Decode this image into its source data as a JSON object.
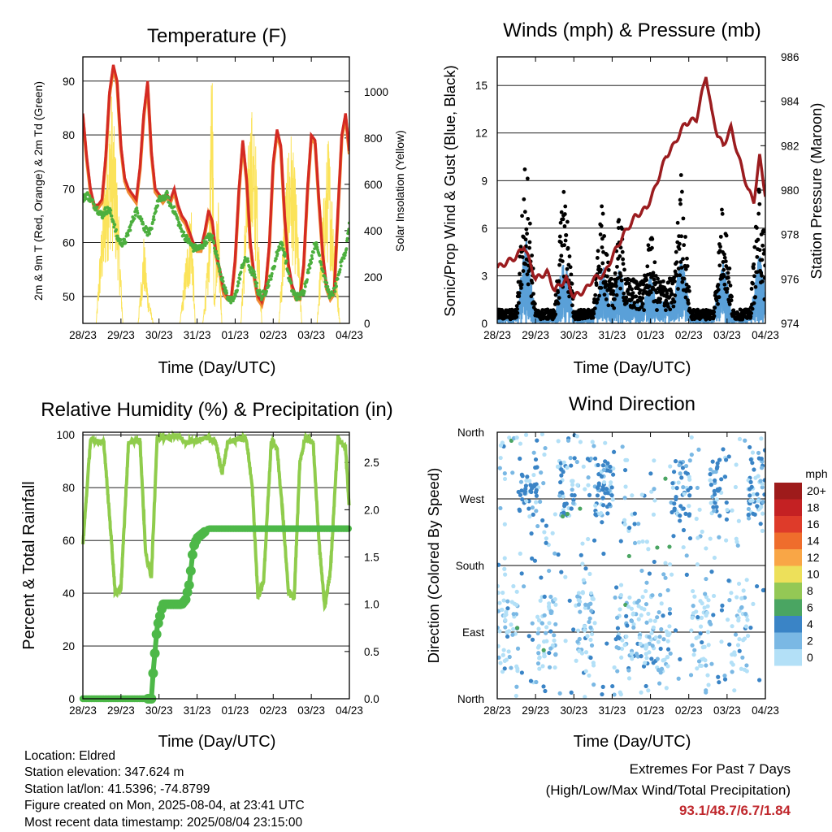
{
  "info": {
    "location": "Location: Eldred",
    "elevation": "Station elevation: 347.624 m",
    "latlon": "Station lat/lon: 41.5396; -74.8799",
    "created": "Figure created on Mon, 2025-08-04, at 23:41 UTC",
    "recent": "Most recent data timestamp: 2025/08/04 23:15:00"
  },
  "extremes": {
    "title": "Extremes For Past 7 Days",
    "subtitle": "(High/Low/Max Wind/Total Precipitation)",
    "values": "93.1/48.7/6.7/1.84"
  },
  "colors": {
    "red": "#d42a23",
    "orange": "#f08a33",
    "green": "#4caf3e",
    "yellow": "#fbe35a",
    "blue": "#5aa0d8",
    "black": "#000000",
    "maroon": "#9b1c1f",
    "rh_green": "#8fcc4c",
    "precip_green": "#4db848"
  },
  "chart_data": [
    {
      "type": "line",
      "title": "Temperature (F)",
      "xlabel": "Time (Day/UTC)",
      "ylabel": "2m & 9m T (Red, Orange) & 2m Td (Green)",
      "ylabel_right": "Solar Insolation (Yellow)",
      "x_ticks": [
        "28/23",
        "29/23",
        "30/23",
        "31/23",
        "01/23",
        "02/23",
        "03/23",
        "04/23"
      ],
      "y_ticks": [
        "50",
        "60",
        "70",
        "80",
        "90"
      ],
      "y_ticks_right": [
        "0",
        "200",
        "400",
        "600",
        "800",
        "1000"
      ],
      "ylim": [
        45,
        94.5
      ],
      "ylim_right": [
        0,
        1150
      ],
      "x": [
        0,
        0.1,
        0.2,
        0.3,
        0.4,
        0.5,
        0.6,
        0.7,
        0.8,
        0.9,
        1.0,
        1.1,
        1.2,
        1.3,
        1.4,
        1.5,
        1.6,
        1.7,
        1.8,
        1.9,
        2.0,
        2.1,
        2.2,
        2.3,
        2.4,
        2.5,
        2.6,
        2.7,
        2.8,
        2.9,
        3.0,
        3.1,
        3.2,
        3.3,
        3.4,
        3.5,
        3.6,
        3.7,
        3.8,
        3.9,
        4.0,
        4.1,
        4.2,
        4.3,
        4.4,
        4.5,
        4.6,
        4.7,
        4.8,
        4.9,
        5.0,
        5.1,
        5.2,
        5.3,
        5.4,
        5.5,
        5.6,
        5.7,
        5.8,
        5.9,
        6.0,
        6.1,
        6.2,
        6.3,
        6.4,
        6.5,
        6.6,
        6.7,
        6.8,
        6.9,
        7.0
      ],
      "series": [
        {
          "name": "2m T",
          "color": "red",
          "values": [
            84,
            76,
            70,
            67,
            67,
            68,
            76,
            88,
            93,
            90,
            78,
            72,
            70,
            69,
            68,
            74,
            84,
            90,
            77,
            70,
            69,
            68,
            69,
            68,
            70,
            67,
            65,
            64,
            62,
            60,
            59,
            59,
            62,
            66,
            64,
            58,
            55,
            51,
            50,
            50,
            57,
            70,
            79,
            72,
            60,
            54,
            50,
            49,
            52,
            60,
            75,
            81,
            78,
            65,
            56,
            52,
            50,
            50,
            56,
            70,
            80,
            79,
            68,
            58,
            52,
            50,
            51,
            66,
            80,
            84,
            77
          ]
        },
        {
          "name": "2m Td",
          "color": "green",
          "values": [
            68,
            69,
            68,
            67,
            66,
            65,
            66,
            66,
            64,
            61,
            60,
            60,
            62,
            64,
            66,
            65,
            63,
            62,
            62,
            66,
            68,
            68,
            69,
            67,
            66,
            64,
            62,
            61,
            60,
            59,
            59,
            59,
            60,
            61,
            61,
            58,
            55,
            52,
            50,
            49,
            50,
            53,
            56,
            57,
            55,
            54,
            51,
            50,
            51,
            53,
            55,
            58,
            60,
            58,
            54,
            51,
            50,
            50,
            51,
            54,
            57,
            60,
            58,
            55,
            52,
            50,
            51,
            53,
            57,
            58,
            64
          ]
        }
      ],
      "solar": [
        [
          0,
          0
        ],
        [
          0.35,
          0
        ],
        [
          0.45,
          300
        ],
        [
          0.6,
          640
        ],
        [
          0.75,
          930
        ],
        [
          0.9,
          600
        ],
        [
          1.05,
          0
        ],
        [
          1.45,
          0
        ],
        [
          1.6,
          350
        ],
        [
          1.72,
          120
        ],
        [
          1.85,
          0
        ],
        [
          2.55,
          0
        ],
        [
          2.7,
          260
        ],
        [
          2.85,
          500
        ],
        [
          2.95,
          0
        ],
        [
          3.15,
          0
        ],
        [
          3.3,
          300
        ],
        [
          3.4,
          1160
        ],
        [
          3.45,
          100
        ],
        [
          3.55,
          600
        ],
        [
          3.65,
          0
        ],
        [
          4.15,
          0
        ],
        [
          4.3,
          600
        ],
        [
          4.42,
          880
        ],
        [
          4.55,
          700
        ],
        [
          4.7,
          0
        ],
        [
          5.15,
          0
        ],
        [
          5.3,
          500
        ],
        [
          5.45,
          800
        ],
        [
          5.6,
          550
        ],
        [
          5.75,
          0
        ],
        [
          6.15,
          0
        ],
        [
          6.3,
          450
        ],
        [
          6.45,
          760
        ],
        [
          6.6,
          400
        ],
        [
          6.75,
          0
        ],
        [
          7.0,
          0
        ]
      ]
    },
    {
      "type": "scatter",
      "title": "Winds (mph) & Pressure (mb)",
      "xlabel": "Time (Day/UTC)",
      "ylabel": "Sonic/Prop Wind & Gust (Blue, Black)",
      "ylabel_right": "Station Pressure (Maroon)",
      "x_ticks": [
        "28/23",
        "29/23",
        "30/23",
        "31/23",
        "01/23",
        "02/23",
        "03/23",
        "04/23"
      ],
      "y_ticks": [
        "0",
        "3",
        "6",
        "9",
        "12",
        "15"
      ],
      "y_ticks_right": [
        "974",
        "976",
        "978",
        "980",
        "982",
        "984",
        "986"
      ],
      "ylim": [
        0,
        16.8
      ],
      "ylim_right": [
        974,
        986
      ],
      "wind_bursts": [
        [
          0.75,
          9.5
        ],
        [
          1.75,
          8
        ],
        [
          2.75,
          6.5
        ],
        [
          3.2,
          6
        ],
        [
          4.0,
          5
        ],
        [
          4.8,
          8
        ],
        [
          5.9,
          7
        ],
        [
          6.85,
          8
        ]
      ],
      "pressure": [
        [
          0,
          976.5
        ],
        [
          0.3,
          976.8
        ],
        [
          0.5,
          977
        ],
        [
          0.7,
          977.5
        ],
        [
          0.9,
          976.5
        ],
        [
          1.0,
          976
        ],
        [
          1.3,
          976.3
        ],
        [
          1.5,
          975.5
        ],
        [
          1.8,
          976
        ],
        [
          2.0,
          975.2
        ],
        [
          2.3,
          975.5
        ],
        [
          2.5,
          976
        ],
        [
          2.8,
          976.2
        ],
        [
          3.0,
          977
        ],
        [
          3.3,
          978
        ],
        [
          3.6,
          978.8
        ],
        [
          3.9,
          979.2
        ],
        [
          4.1,
          980
        ],
        [
          4.4,
          981.5
        ],
        [
          4.6,
          982
        ],
        [
          4.9,
          983
        ],
        [
          5.2,
          983.2
        ],
        [
          5.45,
          985.2
        ],
        [
          5.6,
          983.5
        ],
        [
          5.75,
          982.5
        ],
        [
          5.9,
          982
        ],
        [
          6.1,
          982.8
        ],
        [
          6.3,
          981.5
        ],
        [
          6.55,
          980
        ],
        [
          6.7,
          979.5
        ],
        [
          6.85,
          981.5
        ],
        [
          7.0,
          979.8
        ]
      ]
    },
    {
      "type": "line",
      "title": "Relative Humidity (%) & Precipitation (in)",
      "xlabel": "Time (Day/UTC)",
      "ylabel": "Percent & Total Rainfall",
      "x_ticks": [
        "28/23",
        "29/23",
        "30/23",
        "31/23",
        "01/23",
        "02/23",
        "03/23",
        "04/23"
      ],
      "y_ticks": [
        "0",
        "20",
        "40",
        "60",
        "80",
        "100"
      ],
      "y_ticks_right": [
        "0.0",
        "0.5",
        "1.0",
        "1.5",
        "2.0",
        "2.5"
      ],
      "ylim": [
        0,
        101
      ],
      "ylim_right": [
        0,
        2.82
      ],
      "rh": [
        [
          0,
          58
        ],
        [
          0.2,
          98
        ],
        [
          0.55,
          97
        ],
        [
          0.75,
          60
        ],
        [
          0.85,
          40
        ],
        [
          1.0,
          42
        ],
        [
          1.2,
          97
        ],
        [
          1.5,
          98
        ],
        [
          1.65,
          55
        ],
        [
          1.8,
          46
        ],
        [
          1.95,
          99
        ],
        [
          2.3,
          99
        ],
        [
          2.5,
          100
        ],
        [
          2.7,
          97
        ],
        [
          3.0,
          98
        ],
        [
          3.3,
          99
        ],
        [
          3.5,
          97
        ],
        [
          3.65,
          85
        ],
        [
          3.8,
          97
        ],
        [
          4.15,
          99
        ],
        [
          4.3,
          98
        ],
        [
          4.45,
          80
        ],
        [
          4.6,
          38
        ],
        [
          4.75,
          45
        ],
        [
          4.95,
          98
        ],
        [
          5.1,
          95
        ],
        [
          5.25,
          70
        ],
        [
          5.4,
          40
        ],
        [
          5.55,
          38
        ],
        [
          5.7,
          90
        ],
        [
          5.85,
          99
        ],
        [
          6.05,
          97
        ],
        [
          6.2,
          60
        ],
        [
          6.35,
          35
        ],
        [
          6.5,
          48
        ],
        [
          6.7,
          99
        ],
        [
          6.9,
          95
        ],
        [
          7.0,
          72
        ]
      ],
      "precip": [
        [
          0,
          0
        ],
        [
          1.8,
          0
        ],
        [
          1.85,
          0.3
        ],
        [
          1.95,
          0.75
        ],
        [
          2.1,
          1.0
        ],
        [
          2.6,
          1.0
        ],
        [
          2.7,
          1.05
        ],
        [
          2.8,
          1.22
        ],
        [
          2.9,
          1.6
        ],
        [
          3.0,
          1.7
        ],
        [
          3.3,
          1.8
        ],
        [
          7.0,
          1.8
        ]
      ],
      "precip_total": 1.84
    },
    {
      "type": "scatter",
      "title": "Wind Direction",
      "xlabel": "Time (Day/UTC)",
      "ylabel": "Direction (Colored By Speed)",
      "x_ticks": [
        "28/23",
        "29/23",
        "30/23",
        "31/23",
        "01/23",
        "02/23",
        "03/23",
        "04/23"
      ],
      "y_ticks": [
        "North",
        "East",
        "South",
        "West",
        "North"
      ],
      "colorbar_title": "mph",
      "colorbar_labels": [
        "20+",
        "18",
        "16",
        "14",
        "12",
        "10",
        "8",
        "6",
        "4",
        "2",
        "0"
      ],
      "colorbar_colors": [
        "#9e1b1b",
        "#c42123",
        "#de3b2a",
        "#ef6d2c",
        "#f9a646",
        "#ede05a",
        "#94c855",
        "#4aa562",
        "#3a84c6",
        "#7ab8e4",
        "#b3e0f7"
      ]
    }
  ]
}
